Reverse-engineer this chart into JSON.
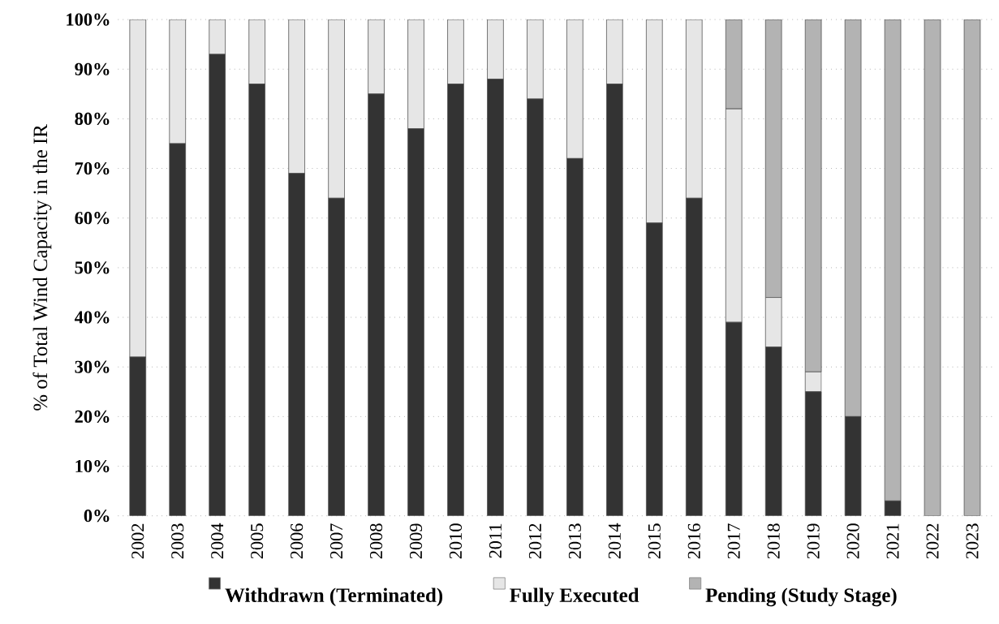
{
  "chart_data": {
    "type": "bar",
    "stacked": true,
    "ylabel": "% of Total Wind Capacity  in the IR",
    "categories": [
      "2002",
      "2003",
      "2004",
      "2005",
      "2006",
      "2007",
      "2008",
      "2009",
      "2010",
      "2011",
      "2012",
      "2013",
      "2014",
      "2015",
      "2016",
      "2017",
      "2018",
      "2019",
      "2020",
      "2021",
      "2022",
      "2023"
    ],
    "series": [
      {
        "name": "Withdrawn (Terminated)",
        "color": "#333333",
        "values": [
          32,
          75,
          93,
          87,
          69,
          64,
          85,
          78,
          87,
          88,
          84,
          72,
          87,
          59,
          64,
          39,
          34,
          25,
          20,
          3,
          0,
          0
        ]
      },
      {
        "name": "Fully Executed",
        "color": "#e6e6e6",
        "values": [
          68,
          25,
          7,
          13,
          31,
          36,
          15,
          22,
          13,
          12,
          16,
          28,
          13,
          41,
          36,
          43,
          10,
          4,
          0,
          0,
          0,
          0
        ]
      },
      {
        "name": "Pending (Study Stage)",
        "color": "#b3b3b3",
        "values": [
          0,
          0,
          0,
          0,
          0,
          0,
          0,
          0,
          0,
          0,
          0,
          0,
          0,
          0,
          0,
          18,
          56,
          71,
          80,
          97,
          100,
          100
        ]
      }
    ],
    "ylim": [
      0,
      100
    ],
    "yticks": [
      {
        "value": 0,
        "label": "0%"
      },
      {
        "value": 10,
        "label": "10%"
      },
      {
        "value": 20,
        "label": "20%"
      },
      {
        "value": 30,
        "label": "30%"
      },
      {
        "value": 40,
        "label": "40%"
      },
      {
        "value": 50,
        "label": "50%"
      },
      {
        "value": 60,
        "label": "60%"
      },
      {
        "value": 70,
        "label": "70%"
      },
      {
        "value": 80,
        "label": "80%"
      },
      {
        "value": 90,
        "label": "90%"
      },
      {
        "value": 100,
        "label": "100%"
      }
    ],
    "grid": "y",
    "legend": "bottom"
  }
}
